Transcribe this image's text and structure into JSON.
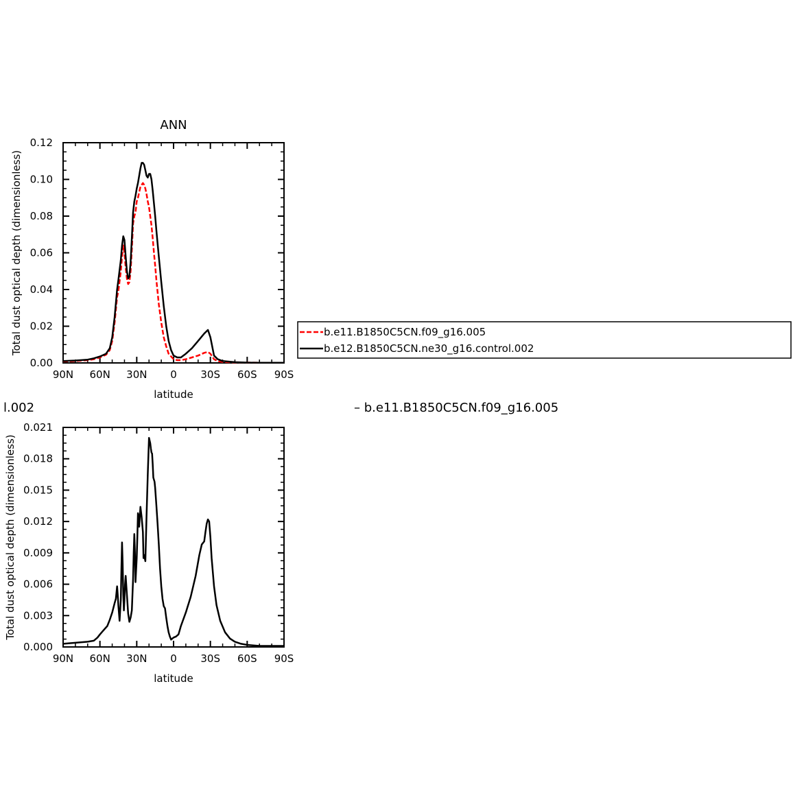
{
  "chart_data": [
    {
      "type": "line",
      "title": "ANN",
      "xlabel": "latitude",
      "ylabel": "Total dust optical depth (dimensionless)",
      "xlim": [
        90,
        -90
      ],
      "ylim": [
        0,
        0.12
      ],
      "xticks": [
        90,
        60,
        30,
        0,
        -30,
        -60,
        -90
      ],
      "xtick_labels": [
        "90N",
        "60N",
        "30N",
        "0",
        "30S",
        "60S",
        "90S"
      ],
      "yticks": [
        0,
        0.02,
        0.04,
        0.06,
        0.08,
        0.1,
        0.12
      ],
      "ytick_labels": [
        "0.00",
        "0.02",
        "0.04",
        "0.06",
        "0.08",
        "0.10",
        "0.12"
      ],
      "legend_placement": "right",
      "series": [
        {
          "name": "b.e11.B1850C5CN.f09_g16.005",
          "color": "#ff0000",
          "style": "dashed",
          "x": [
            90,
            80,
            70,
            65,
            60,
            55,
            52,
            50,
            48,
            46,
            45,
            43,
            42,
            41,
            40,
            39,
            38,
            37,
            36,
            35,
            34,
            33,
            32,
            31,
            30,
            29,
            28,
            27,
            26,
            25,
            24,
            23,
            22,
            21,
            20,
            19,
            18,
            17,
            16,
            15,
            14,
            12,
            10,
            8,
            6,
            4,
            2,
            0,
            -3,
            -6,
            -10,
            -15,
            -20,
            -25,
            -28,
            -30,
            -33,
            -36,
            -40,
            -50,
            -60,
            -70,
            -80,
            -90
          ],
          "y": [
            0.0008,
            0.001,
            0.0015,
            0.002,
            0.003,
            0.0045,
            0.007,
            0.012,
            0.022,
            0.036,
            0.039,
            0.05,
            0.058,
            0.064,
            0.06,
            0.052,
            0.046,
            0.043,
            0.044,
            0.05,
            0.062,
            0.076,
            0.08,
            0.082,
            0.088,
            0.09,
            0.093,
            0.096,
            0.097,
            0.098,
            0.097,
            0.095,
            0.092,
            0.088,
            0.085,
            0.08,
            0.075,
            0.068,
            0.06,
            0.053,
            0.045,
            0.032,
            0.022,
            0.014,
            0.009,
            0.005,
            0.0035,
            0.002,
            0.0015,
            0.0015,
            0.002,
            0.003,
            0.004,
            0.0055,
            0.006,
            0.005,
            0.002,
            0.001,
            0.0005,
            0.0003,
            0.0002,
            0.0001,
            0.0001,
            0.0001
          ]
        },
        {
          "name": "b.e12.B1850C5CN.ne30_g16.control.002",
          "color": "#000000",
          "style": "solid",
          "x": [
            90,
            80,
            70,
            65,
            60,
            55,
            52,
            50,
            48,
            46,
            45,
            43,
            42,
            41,
            40,
            39,
            38,
            37,
            36,
            35,
            34,
            33,
            32,
            31,
            30,
            29,
            28,
            27,
            26,
            25,
            24,
            23,
            22,
            21,
            20,
            19,
            18,
            17,
            16,
            15,
            14,
            12,
            10,
            8,
            6,
            4,
            2,
            0,
            -3,
            -6,
            -10,
            -15,
            -20,
            -25,
            -28,
            -30,
            -33,
            -36,
            -40,
            -50,
            -60,
            -70,
            -80,
            -90
          ],
          "y": [
            0.001,
            0.0013,
            0.0018,
            0.0025,
            0.0035,
            0.005,
            0.008,
            0.014,
            0.025,
            0.04,
            0.045,
            0.056,
            0.064,
            0.069,
            0.067,
            0.058,
            0.05,
            0.046,
            0.047,
            0.055,
            0.068,
            0.082,
            0.088,
            0.091,
            0.095,
            0.098,
            0.102,
            0.106,
            0.109,
            0.109,
            0.108,
            0.105,
            0.102,
            0.101,
            0.103,
            0.103,
            0.1,
            0.094,
            0.087,
            0.08,
            0.072,
            0.058,
            0.044,
            0.031,
            0.02,
            0.012,
            0.007,
            0.004,
            0.003,
            0.003,
            0.005,
            0.008,
            0.012,
            0.016,
            0.018,
            0.014,
            0.004,
            0.002,
            0.001,
            0.0004,
            0.0002,
            0.0001,
            0.0001,
            0.0001
          ]
        }
      ]
    },
    {
      "type": "line",
      "title": "",
      "xlabel": "latitude",
      "ylabel": "Total dust optical depth (dimensionless)",
      "xlim": [
        90,
        -90
      ],
      "ylim": [
        0,
        0.021
      ],
      "xticks": [
        90,
        60,
        30,
        0,
        -30,
        -60,
        -90
      ],
      "xtick_labels": [
        "90N",
        "60N",
        "30N",
        "0",
        "30S",
        "60S",
        "90S"
      ],
      "yticks": [
        0,
        0.003,
        0.006,
        0.009,
        0.012,
        0.015,
        0.018,
        0.021
      ],
      "ytick_labels": [
        "0.000",
        "0.003",
        "0.006",
        "0.009",
        "0.012",
        "0.015",
        "0.018",
        "0.021"
      ],
      "series": [
        {
          "color": "#000000",
          "style": "solid",
          "x": [
            90,
            80,
            70,
            65,
            62,
            60,
            57,
            54,
            52,
            50,
            48,
            47,
            46,
            45.5,
            45,
            44,
            43,
            42.5,
            42,
            41.5,
            41,
            40.5,
            40,
            39.5,
            39,
            38,
            37,
            36,
            35,
            34,
            33,
            32.5,
            32,
            31.5,
            31,
            30,
            29.5,
            29,
            28.5,
            28,
            27,
            26,
            25,
            24.5,
            24,
            23,
            22,
            21,
            20,
            19,
            18.5,
            18,
            17.5,
            17,
            16.5,
            16,
            15.5,
            15,
            14,
            13,
            12,
            11,
            10,
            9,
            8,
            7,
            6,
            5,
            4,
            3,
            2,
            1,
            0,
            -2,
            -4,
            -6,
            -10,
            -14,
            -18,
            -21,
            -23,
            -25,
            -26,
            -27,
            -28,
            -29,
            -30,
            -31,
            -33,
            -35,
            -38,
            -42,
            -46,
            -50,
            -55,
            -60,
            -70,
            -80,
            -90
          ],
          "y": [
            0.0003,
            0.0004,
            0.0005,
            0.0006,
            0.0009,
            0.0012,
            0.0016,
            0.002,
            0.0026,
            0.0033,
            0.0042,
            0.0046,
            0.0058,
            0.005,
            0.004,
            0.0025,
            0.0045,
            0.0075,
            0.01,
            0.008,
            0.005,
            0.0035,
            0.0045,
            0.006,
            0.0068,
            0.005,
            0.0032,
            0.0024,
            0.0028,
            0.0035,
            0.0065,
            0.009,
            0.0108,
            0.009,
            0.0062,
            0.0085,
            0.0105,
            0.0128,
            0.0125,
            0.0115,
            0.0134,
            0.0124,
            0.011,
            0.0085,
            0.0088,
            0.0082,
            0.0125,
            0.0165,
            0.02,
            0.0195,
            0.019,
            0.0186,
            0.0185,
            0.0175,
            0.0162,
            0.016,
            0.0158,
            0.0152,
            0.0135,
            0.0118,
            0.0098,
            0.0075,
            0.0058,
            0.0046,
            0.0039,
            0.0037,
            0.0028,
            0.002,
            0.0014,
            0.001,
            0.0007,
            0.0008,
            0.0009,
            0.001,
            0.0012,
            0.002,
            0.0033,
            0.0048,
            0.0068,
            0.0088,
            0.0098,
            0.0101,
            0.011,
            0.0118,
            0.0122,
            0.012,
            0.0105,
            0.0085,
            0.0058,
            0.004,
            0.0025,
            0.0014,
            0.0008,
            0.0005,
            0.0003,
            0.0002,
            0.0001,
            0.0001,
            0.0001
          ]
        }
      ]
    }
  ],
  "fragments": {
    "left_text": "l.002",
    "right_text": "– b.e11.B1850C5CN.f09_g16.005"
  }
}
